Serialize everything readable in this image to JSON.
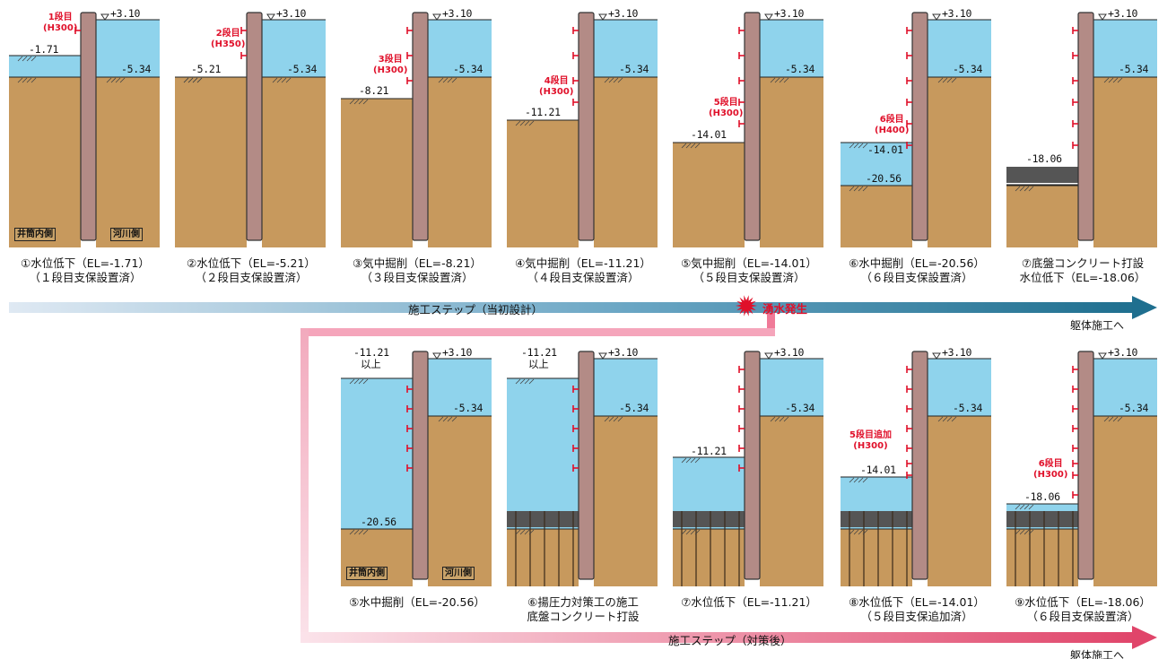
{
  "colors": {
    "water": "#8fd3ec",
    "soil": "#c7995d",
    "wall": "#b38b86",
    "support": "#e0102a",
    "concrete": "#555555",
    "arrow_top": "#1f6f8f",
    "arrow_bottom": "#e0456a"
  },
  "flow": {
    "top_label": "施工ステップ（当初設計）",
    "top_event": "湧水発生",
    "top_end": "躯体施工へ",
    "bottom_label": "施工ステップ（対策後）",
    "bottom_end": "躯体施工へ"
  },
  "panels_top": [
    {
      "id": "p1",
      "caption": [
        "①水位低下（EL=-1.71）",
        "（１段目支保設置済）"
      ],
      "elevations": [
        "+3.10",
        "-1.71",
        "-5.34"
      ],
      "supports": [
        "1段目",
        "(H300)"
      ],
      "labels": [
        "井筒内側",
        "河川側"
      ]
    },
    {
      "id": "p2",
      "caption": [
        "②水位低下（EL=-5.21）",
        "（２段目支保設置済）"
      ],
      "elevations": [
        "+3.10",
        "-5.21",
        "-5.34"
      ],
      "supports": [
        "2段目",
        "(H350)"
      ]
    },
    {
      "id": "p3",
      "caption": [
        "③気中掘削（EL=-8.21）",
        "（３段目支保設置済）"
      ],
      "elevations": [
        "+3.10",
        "-8.21",
        "-5.34"
      ],
      "supports": [
        "3段目",
        "(H300)"
      ]
    },
    {
      "id": "p4",
      "caption": [
        "④気中掘削（EL=-11.21）",
        "（４段目支保設置済）"
      ],
      "elevations": [
        "+3.10",
        "-11.21",
        "-5.34"
      ],
      "supports": [
        "4段目",
        "(H300)"
      ]
    },
    {
      "id": "p5",
      "caption": [
        "⑤気中掘削（EL=-14.01）",
        "（５段目支保設置済）"
      ],
      "elevations": [
        "+3.10",
        "-14.01",
        "-5.34"
      ],
      "supports": [
        "5段目",
        "(H300)"
      ]
    },
    {
      "id": "p6",
      "caption": [
        "⑥水中掘削（EL=-20.56）",
        "（６段目支保設置済）"
      ],
      "elevations": [
        "+3.10",
        "-14.01",
        "-5.34",
        "-20.56"
      ],
      "supports": [
        "6段目",
        "(H400)"
      ]
    },
    {
      "id": "p7",
      "caption": [
        "⑦底盤コンクリート打設",
        "水位低下（EL=-18.06）"
      ],
      "elevations": [
        "+3.10",
        "-18.06",
        "-5.34"
      ]
    }
  ],
  "panels_bottom": [
    {
      "id": "q5",
      "caption": [
        "⑤水中掘削（EL=-20.56）"
      ],
      "elevations": [
        "+3.10",
        "-11.21",
        "以上",
        "-5.34",
        "-20.56"
      ],
      "labels": [
        "井筒内側",
        "河川側"
      ]
    },
    {
      "id": "q6",
      "caption": [
        "⑥揚圧力対策工の施工",
        "底盤コンクリート打設"
      ],
      "elevations": [
        "+3.10",
        "-11.21",
        "以上",
        "-5.34"
      ]
    },
    {
      "id": "q7",
      "caption": [
        "⑦水位低下（EL=-11.21）"
      ],
      "elevations": [
        "+3.10",
        "-11.21",
        "-5.34"
      ]
    },
    {
      "id": "q8",
      "caption": [
        "⑧水位低下（EL=-14.01）",
        "（５段目支保追加済）"
      ],
      "elevations": [
        "+3.10",
        "-14.01",
        "-5.34"
      ],
      "supports": [
        "5段目追加",
        "(H300)"
      ]
    },
    {
      "id": "q9",
      "caption": [
        "⑨水位低下（EL=-18.06）",
        "（６段目支保設置済）"
      ],
      "elevations": [
        "+3.10",
        "-18.06",
        "-5.34"
      ],
      "supports": [
        "6段目",
        "(H300)"
      ]
    }
  ]
}
